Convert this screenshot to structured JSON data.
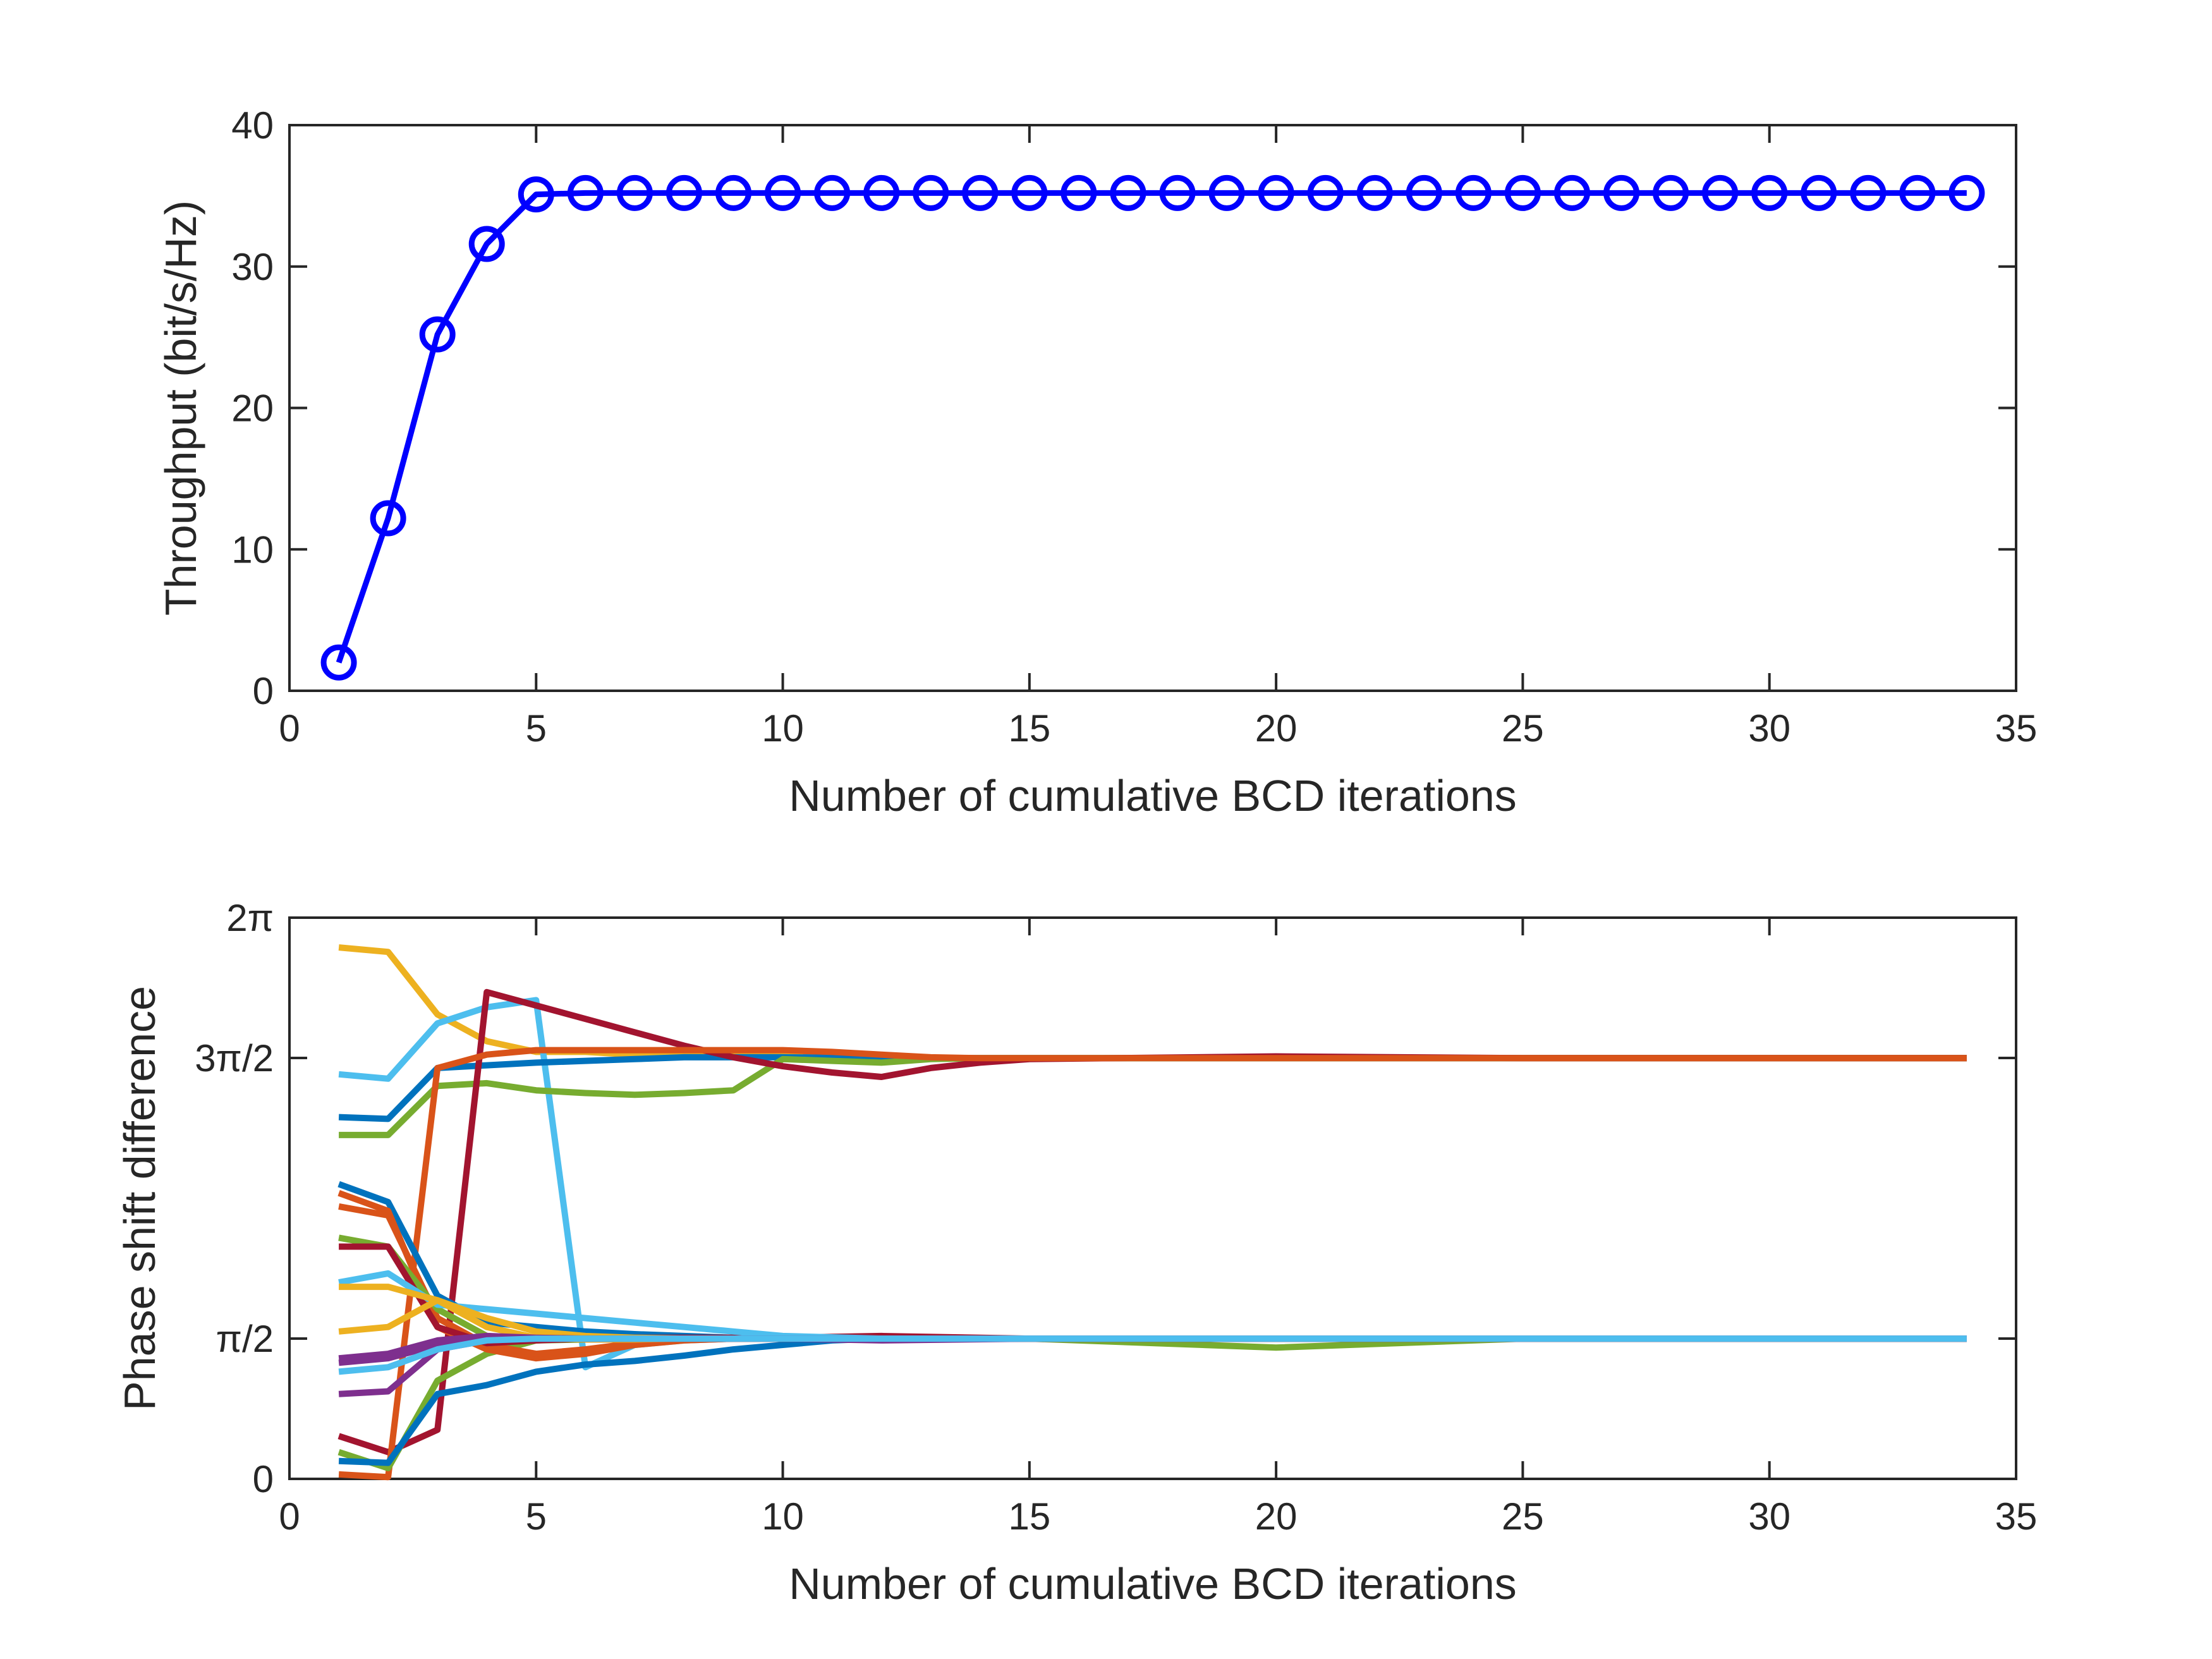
{
  "chart_data": [
    {
      "type": "line",
      "title": "",
      "xlabel": "Number of cumulative BCD iterations",
      "ylabel": "Throughput (bit/s/Hz)",
      "xlim": [
        0,
        35
      ],
      "ylim": [
        0,
        40
      ],
      "xticks": [
        0,
        5,
        10,
        15,
        20,
        25,
        30,
        35
      ],
      "xtick_labels": [
        "0",
        "5",
        "10",
        "15",
        "20",
        "25",
        "30",
        "35"
      ],
      "yticks": [
        0,
        10,
        20,
        30,
        40
      ],
      "ytick_labels": [
        "0",
        "10",
        "20",
        "30",
        "40"
      ],
      "grid": false,
      "marker": "circle",
      "series": [
        {
          "color": "#0000FF",
          "x": [
            1,
            2,
            3,
            4,
            5,
            6,
            7,
            8,
            9,
            10,
            11,
            12,
            13,
            14,
            15,
            16,
            17,
            18,
            19,
            20,
            21,
            22,
            23,
            24,
            25,
            26,
            27,
            28,
            29,
            30,
            31,
            32,
            33,
            34
          ],
          "y": [
            2.0,
            12.2,
            25.2,
            31.6,
            35.1,
            35.2,
            35.2,
            35.2,
            35.2,
            35.2,
            35.2,
            35.2,
            35.2,
            35.2,
            35.2,
            35.2,
            35.2,
            35.2,
            35.2,
            35.2,
            35.2,
            35.2,
            35.2,
            35.2,
            35.2,
            35.2,
            35.2,
            35.2,
            35.2,
            35.2,
            35.2,
            35.2,
            35.2,
            35.2
          ]
        }
      ]
    },
    {
      "type": "line",
      "title": "",
      "xlabel": "Number of cumulative BCD iterations",
      "ylabel": "Phase shift difference",
      "xlim": [
        0,
        35
      ],
      "ylim": [
        0,
        6.2832
      ],
      "xticks": [
        0,
        5,
        10,
        15,
        20,
        25,
        30,
        35
      ],
      "xtick_labels": [
        "0",
        "5",
        "10",
        "15",
        "20",
        "25",
        "30",
        "35"
      ],
      "yticks": [
        0,
        1.5708,
        4.7124,
        6.2832
      ],
      "ytick_labels": [
        "0",
        "π/2",
        "3π/2",
        "2π"
      ],
      "grid": false,
      "series": [
        {
          "color": "#EDB120",
          "x": [
            1,
            2,
            3,
            4,
            5,
            6,
            7,
            8,
            9,
            10,
            11,
            12,
            13,
            14,
            15,
            20,
            25,
            30,
            34
          ],
          "y": [
            5.95,
            5.9,
            5.2,
            4.9,
            4.78,
            4.78,
            4.75,
            4.74,
            4.74,
            4.73,
            4.72,
            4.72,
            4.71,
            4.71,
            4.71,
            4.71,
            4.71,
            4.71,
            4.71
          ]
        },
        {
          "color": "#4DBEEE",
          "x": [
            1,
            2,
            3,
            4,
            5,
            6,
            7,
            8,
            9,
            10,
            12,
            15,
            20,
            25,
            30,
            34
          ],
          "y": [
            4.53,
            4.48,
            5.1,
            5.28,
            5.36,
            1.25,
            1.5,
            1.55,
            1.57,
            1.58,
            1.57,
            1.57,
            1.57,
            1.57,
            1.57,
            1.57
          ]
        },
        {
          "color": "#0072BD",
          "x": [
            1,
            2,
            3,
            4,
            5,
            6,
            7,
            8,
            9,
            10,
            12,
            15,
            20,
            25,
            30,
            34
          ],
          "y": [
            4.05,
            4.03,
            4.6,
            4.63,
            4.66,
            4.68,
            4.7,
            4.72,
            4.72,
            4.72,
            4.71,
            4.71,
            4.71,
            4.71,
            4.71,
            4.71
          ]
        },
        {
          "color": "#77AC30",
          "x": [
            1,
            2,
            3,
            4,
            5,
            6,
            7,
            8,
            9,
            10,
            11,
            12,
            13,
            14,
            15,
            20,
            25,
            30,
            34
          ],
          "y": [
            3.85,
            3.85,
            4.4,
            4.43,
            4.35,
            4.32,
            4.3,
            4.32,
            4.35,
            4.7,
            4.68,
            4.66,
            4.7,
            4.71,
            4.71,
            4.71,
            4.71,
            4.71,
            4.71
          ]
        },
        {
          "color": "#A2142F",
          "x": [
            1,
            2,
            3,
            4,
            5,
            6,
            7,
            8,
            9,
            10,
            11,
            12,
            13,
            14,
            15,
            20,
            25,
            30,
            34
          ],
          "y": [
            0.48,
            0.3,
            0.55,
            5.45,
            5.3,
            5.15,
            5.0,
            4.85,
            4.72,
            4.62,
            4.55,
            4.5,
            4.6,
            4.66,
            4.7,
            4.73,
            4.71,
            4.71,
            4.71
          ]
        },
        {
          "color": "#D95319",
          "x": [
            1,
            2,
            3,
            4,
            5,
            6,
            7,
            8,
            9,
            10,
            11,
            12,
            13,
            14,
            15,
            20,
            25,
            30,
            34
          ],
          "y": [
            0.05,
            0.02,
            4.6,
            4.75,
            4.8,
            4.8,
            4.8,
            4.8,
            4.8,
            4.8,
            4.78,
            4.75,
            4.72,
            4.71,
            4.71,
            4.71,
            4.71,
            4.71,
            4.71
          ]
        },
        {
          "color": "#77AC30",
          "x": [
            1,
            2,
            3,
            4,
            5,
            6,
            7,
            8,
            9,
            10,
            11,
            12,
            13,
            14,
            15,
            20,
            25,
            30,
            34
          ],
          "y": [
            0.3,
            0.12,
            1.1,
            1.4,
            1.55,
            1.58,
            1.58,
            1.58,
            1.58,
            1.58,
            1.57,
            1.57,
            1.57,
            1.57,
            1.57,
            1.47,
            1.57,
            1.57,
            1.57
          ]
        },
        {
          "color": "#0072BD",
          "x": [
            1,
            2,
            3,
            4,
            5,
            6,
            7,
            8,
            9,
            10,
            11,
            12,
            13,
            14,
            15,
            20,
            25,
            30,
            34
          ],
          "y": [
            0.2,
            0.18,
            0.95,
            1.05,
            1.2,
            1.28,
            1.32,
            1.38,
            1.45,
            1.5,
            1.55,
            1.57,
            1.57,
            1.57,
            1.57,
            1.57,
            1.57,
            1.57,
            1.57
          ]
        },
        {
          "color": "#0072BD",
          "x": [
            1,
            2,
            3,
            4,
            5,
            6,
            7,
            8,
            9,
            10,
            12,
            15,
            20,
            25,
            30,
            34
          ],
          "y": [
            3.3,
            3.1,
            2.05,
            1.75,
            1.7,
            1.65,
            1.62,
            1.6,
            1.58,
            1.58,
            1.57,
            1.57,
            1.57,
            1.57,
            1.57,
            1.57
          ]
        },
        {
          "color": "#D95319",
          "x": [
            1,
            2,
            3,
            4,
            5,
            6,
            7,
            8,
            9,
            10,
            12,
            15,
            20,
            25,
            30,
            34
          ],
          "y": [
            3.2,
            3.0,
            1.7,
            1.45,
            1.35,
            1.4,
            1.5,
            1.55,
            1.57,
            1.57,
            1.57,
            1.57,
            1.57,
            1.57,
            1.57,
            1.57
          ]
        },
        {
          "color": "#D95319",
          "x": [
            1,
            2,
            3,
            4,
            5,
            6,
            7,
            8,
            9,
            10,
            12,
            15,
            20,
            25,
            30,
            34
          ],
          "y": [
            3.05,
            2.95,
            1.8,
            1.5,
            1.4,
            1.45,
            1.52,
            1.56,
            1.57,
            1.57,
            1.57,
            1.57,
            1.57,
            1.57,
            1.57,
            1.57
          ]
        },
        {
          "color": "#77AC30",
          "x": [
            1,
            2,
            3,
            4,
            5,
            6,
            7,
            8,
            9,
            10,
            12,
            15,
            20,
            25,
            30,
            34
          ],
          "y": [
            2.7,
            2.6,
            1.9,
            1.6,
            1.55,
            1.56,
            1.57,
            1.57,
            1.57,
            1.57,
            1.57,
            1.57,
            1.57,
            1.57,
            1.57,
            1.57
          ]
        },
        {
          "color": "#A2142F",
          "x": [
            1,
            2,
            3,
            4,
            5,
            6,
            7,
            8,
            9,
            10,
            12,
            15,
            20,
            25,
            30,
            34
          ],
          "y": [
            2.6,
            2.6,
            1.7,
            1.52,
            1.55,
            1.57,
            1.58,
            1.58,
            1.58,
            1.58,
            1.6,
            1.57,
            1.57,
            1.57,
            1.57,
            1.57
          ]
        },
        {
          "color": "#4DBEEE",
          "x": [
            1,
            2,
            3,
            4,
            5,
            6,
            7,
            8,
            9,
            10,
            12,
            15,
            20,
            25,
            30,
            34
          ],
          "y": [
            2.2,
            2.3,
            1.95,
            1.9,
            1.85,
            1.8,
            1.75,
            1.7,
            1.65,
            1.6,
            1.57,
            1.57,
            1.57,
            1.57,
            1.57,
            1.57
          ]
        },
        {
          "color": "#EDB120",
          "x": [
            1,
            2,
            3,
            4,
            5,
            6,
            7,
            8,
            9,
            10,
            12,
            15,
            20,
            25,
            30,
            34
          ],
          "y": [
            2.15,
            2.15,
            2.0,
            1.8,
            1.65,
            1.6,
            1.58,
            1.57,
            1.57,
            1.57,
            1.57,
            1.57,
            1.57,
            1.57,
            1.57,
            1.57
          ]
        },
        {
          "color": "#EDB120",
          "x": [
            1,
            2,
            3,
            4,
            5,
            6,
            7,
            8,
            9,
            10,
            12,
            15,
            20,
            25,
            30,
            34
          ],
          "y": [
            1.65,
            1.7,
            2.0,
            1.7,
            1.58,
            1.56,
            1.56,
            1.57,
            1.57,
            1.57,
            1.57,
            1.57,
            1.57,
            1.57,
            1.57,
            1.57
          ]
        },
        {
          "color": "#7E2F8E",
          "x": [
            1,
            2,
            3,
            4,
            5,
            6,
            7,
            8,
            9,
            10,
            12,
            15,
            20,
            25,
            30,
            34
          ],
          "y": [
            1.3,
            1.35,
            1.5,
            1.55,
            1.57,
            1.57,
            1.57,
            1.57,
            1.57,
            1.57,
            1.57,
            1.57,
            1.57,
            1.57,
            1.57,
            1.57
          ]
        },
        {
          "color": "#7E2F8E",
          "x": [
            1,
            2,
            3,
            4,
            5,
            6,
            7,
            8,
            9,
            10,
            12,
            15,
            20,
            25,
            30,
            34
          ],
          "y": [
            1.35,
            1.4,
            1.55,
            1.6,
            1.58,
            1.57,
            1.57,
            1.57,
            1.57,
            1.57,
            1.55,
            1.57,
            1.57,
            1.57,
            1.57,
            1.57
          ]
        },
        {
          "color": "#7E2F8E",
          "x": [
            1,
            2,
            3,
            4,
            5,
            6,
            7,
            8,
            9,
            10,
            12,
            15,
            20,
            25,
            30,
            34
          ],
          "y": [
            0.95,
            0.98,
            1.45,
            1.55,
            1.57,
            1.57,
            1.57,
            1.57,
            1.57,
            1.57,
            1.57,
            1.57,
            1.57,
            1.57,
            1.57,
            1.57
          ]
        },
        {
          "color": "#4DBEEE",
          "x": [
            1,
            2,
            3,
            4,
            5,
            6,
            7,
            8,
            9,
            10,
            12,
            15,
            20,
            25,
            30,
            34
          ],
          "y": [
            1.2,
            1.25,
            1.45,
            1.55,
            1.57,
            1.57,
            1.57,
            1.57,
            1.57,
            1.57,
            1.57,
            1.57,
            1.57,
            1.57,
            1.57,
            1.57
          ]
        }
      ]
    }
  ]
}
